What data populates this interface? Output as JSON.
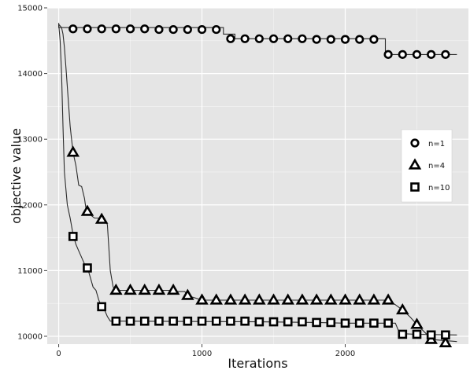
{
  "chart_data": {
    "type": "line",
    "title": "",
    "xlabel": "Iterations",
    "ylabel": "objective value",
    "xlim": [
      -80,
      2860
    ],
    "ylim": [
      9880,
      15000
    ],
    "x_ticks": [
      0,
      1000,
      2000
    ],
    "x_tick_labels": [
      "0",
      "1000",
      "2000"
    ],
    "y_ticks": [
      10000,
      11000,
      12000,
      13000,
      14000,
      15000
    ],
    "y_tick_labels": [
      "10000",
      "11000",
      "12000",
      "13000",
      "14000",
      "15000"
    ],
    "grid": true,
    "legend_position": "right",
    "colors": {
      "panel_background": "#e5e5e5",
      "grid": "#ffffff",
      "line": "#2b2b2b",
      "marker_fill": "#ffffff",
      "marker_stroke": "#000000"
    },
    "series": [
      {
        "name": "n=1",
        "marker": "circle",
        "markers": {
          "x": [
            100,
            200,
            300,
            400,
            500,
            600,
            700,
            800,
            900,
            1000,
            1100,
            1200,
            1300,
            1400,
            1500,
            1600,
            1700,
            1800,
            1900,
            2000,
            2100,
            2200,
            2300,
            2400,
            2500,
            2600,
            2700
          ],
          "y": [
            14680,
            14680,
            14680,
            14680,
            14680,
            14680,
            14670,
            14670,
            14670,
            14670,
            14670,
            14530,
            14530,
            14530,
            14530,
            14530,
            14530,
            14520,
            14520,
            14520,
            14520,
            14520,
            14290,
            14290,
            14290,
            14290,
            14290
          ]
        },
        "trace": {
          "x": [
            0,
            0,
            1150,
            1150,
            1230,
            1230,
            2280,
            2280,
            2780
          ],
          "y": [
            14770,
            14700,
            14700,
            14600,
            14600,
            14530,
            14530,
            14290,
            14290
          ]
        }
      },
      {
        "name": "n=4",
        "marker": "triangle",
        "markers": {
          "x": [
            100,
            200,
            300,
            400,
            500,
            600,
            700,
            800,
            900,
            1000,
            1100,
            1200,
            1300,
            1400,
            1500,
            1600,
            1700,
            1800,
            1900,
            2000,
            2100,
            2200,
            2300,
            2400,
            2500,
            2600,
            2700
          ],
          "y": [
            12800,
            11900,
            11780,
            10700,
            10700,
            10700,
            10700,
            10700,
            10620,
            10550,
            10550,
            10550,
            10550,
            10550,
            10550,
            10550,
            10550,
            10550,
            10550,
            10550,
            10550,
            10550,
            10550,
            10400,
            10180,
            9950,
            9900
          ]
        },
        "trace": {
          "x": [
            0,
            20,
            30,
            40,
            50,
            60,
            70,
            80,
            90,
            100,
            120,
            140,
            160,
            180,
            190,
            200,
            220,
            250,
            280,
            320,
            340,
            360,
            380,
            400,
            800,
            820,
            880,
            900,
            1000,
            2300,
            2350,
            2400,
            2450,
            2500,
            2560,
            2600,
            2780
          ],
          "y": [
            14750,
            14700,
            14600,
            14400,
            14100,
            13800,
            13500,
            13200,
            13000,
            12800,
            12600,
            12300,
            12280,
            12100,
            11950,
            11900,
            11850,
            11800,
            11800,
            11780,
            11700,
            11000,
            10750,
            10700,
            10700,
            10680,
            10680,
            10620,
            10550,
            10550,
            10480,
            10400,
            10300,
            10180,
            10050,
            9950,
            9920
          ]
        }
      },
      {
        "name": "n=10",
        "marker": "square",
        "markers": {
          "x": [
            100,
            200,
            300,
            400,
            500,
            600,
            700,
            800,
            900,
            1000,
            1100,
            1200,
            1300,
            1400,
            1500,
            1600,
            1700,
            1800,
            1900,
            2000,
            2100,
            2200,
            2300,
            2400,
            2500,
            2600,
            2700
          ],
          "y": [
            11520,
            11040,
            10450,
            10230,
            10230,
            10230,
            10230,
            10230,
            10230,
            10230,
            10230,
            10230,
            10230,
            10220,
            10220,
            10220,
            10220,
            10210,
            10210,
            10200,
            10200,
            10200,
            10200,
            10030,
            10030,
            10020,
            10020
          ]
        },
        "trace": {
          "x": [
            0,
            10,
            20,
            30,
            40,
            60,
            80,
            100,
            120,
            140,
            160,
            180,
            200,
            220,
            240,
            260,
            280,
            300,
            320,
            340,
            360,
            400,
            1400,
            1800,
            2000,
            2350,
            2380,
            2500,
            2780
          ],
          "y": [
            14750,
            14500,
            14000,
            13200,
            12500,
            12000,
            11800,
            11550,
            11400,
            11300,
            11200,
            11100,
            11050,
            10900,
            10750,
            10700,
            10550,
            10450,
            10400,
            10300,
            10230,
            10230,
            10220,
            10210,
            10200,
            10200,
            10040,
            10030,
            10020
          ]
        }
      }
    ]
  }
}
